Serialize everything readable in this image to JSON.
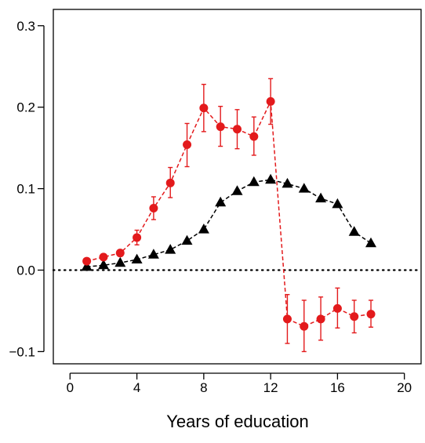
{
  "chart_data": {
    "type": "line",
    "title": "",
    "xlabel": "Years of education",
    "ylabel": "",
    "xlim": [
      -1,
      21
    ],
    "ylim": [
      -0.115,
      0.32
    ],
    "xticks": [
      0,
      4,
      8,
      12,
      16,
      20
    ],
    "xtick_labels": [
      "0",
      "4",
      "8",
      "12",
      "16",
      "20"
    ],
    "yticks": [
      -0.1,
      0.0,
      0.1,
      0.2,
      0.3
    ],
    "ytick_labels": [
      "−0.1",
      "0.0",
      "0.1",
      "0.2",
      "0.3"
    ],
    "grid": false,
    "reference_line": {
      "y": 0,
      "style": "dotted",
      "color": "#000000"
    },
    "series": [
      {
        "marker": "circle",
        "line_style": "dashed",
        "color": "#e31a1c",
        "has_error_bars": true,
        "points": [
          {
            "x": 1,
            "y": 0.011,
            "lo": null,
            "hi": null
          },
          {
            "x": 2,
            "y": 0.016,
            "lo": null,
            "hi": null
          },
          {
            "x": 3,
            "y": 0.021,
            "lo": null,
            "hi": null
          },
          {
            "x": 4,
            "y": 0.04,
            "lo": 0.031,
            "hi": 0.049
          },
          {
            "x": 5,
            "y": 0.076,
            "lo": 0.062,
            "hi": 0.09
          },
          {
            "x": 6,
            "y": 0.107,
            "lo": 0.089,
            "hi": 0.126
          },
          {
            "x": 7,
            "y": 0.154,
            "lo": 0.127,
            "hi": 0.18
          },
          {
            "x": 8,
            "y": 0.199,
            "lo": 0.17,
            "hi": 0.228
          },
          {
            "x": 9,
            "y": 0.176,
            "lo": 0.152,
            "hi": 0.201
          },
          {
            "x": 10,
            "y": 0.173,
            "lo": 0.149,
            "hi": 0.197
          },
          {
            "x": 11,
            "y": 0.164,
            "lo": 0.141,
            "hi": 0.188
          },
          {
            "x": 12,
            "y": 0.207,
            "lo": 0.179,
            "hi": 0.235
          },
          {
            "x": 13,
            "y": -0.06,
            "lo": -0.09,
            "hi": -0.03
          },
          {
            "x": 14,
            "y": -0.069,
            "lo": -0.1,
            "hi": -0.037
          },
          {
            "x": 15,
            "y": -0.06,
            "lo": -0.086,
            "hi": -0.033
          },
          {
            "x": 16,
            "y": -0.047,
            "lo": -0.071,
            "hi": -0.022
          },
          {
            "x": 17,
            "y": -0.057,
            "lo": -0.077,
            "hi": -0.037
          },
          {
            "x": 18,
            "y": -0.054,
            "lo": -0.07,
            "hi": -0.037
          }
        ]
      },
      {
        "marker": "triangle",
        "line_style": "dashed",
        "color": "#000000",
        "has_error_bars": false,
        "points": [
          {
            "x": 1,
            "y": 0.004
          },
          {
            "x": 2,
            "y": 0.006
          },
          {
            "x": 3,
            "y": 0.009
          },
          {
            "x": 4,
            "y": 0.013
          },
          {
            "x": 5,
            "y": 0.019
          },
          {
            "x": 6,
            "y": 0.025
          },
          {
            "x": 7,
            "y": 0.036
          },
          {
            "x": 8,
            "y": 0.05
          },
          {
            "x": 9,
            "y": 0.083
          },
          {
            "x": 10,
            "y": 0.097
          },
          {
            "x": 11,
            "y": 0.108
          },
          {
            "x": 12,
            "y": 0.111
          },
          {
            "x": 13,
            "y": 0.106
          },
          {
            "x": 14,
            "y": 0.1
          },
          {
            "x": 15,
            "y": 0.088
          },
          {
            "x": 16,
            "y": 0.081
          },
          {
            "x": 17,
            "y": 0.047
          },
          {
            "x": 18,
            "y": 0.033
          }
        ]
      }
    ]
  }
}
